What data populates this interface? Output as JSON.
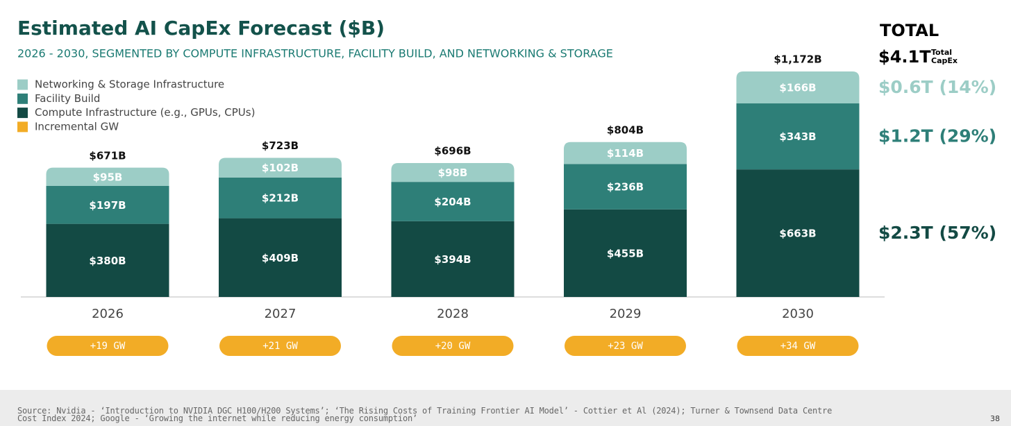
{
  "chart_data": {
    "type": "stacked_bar",
    "title": "Estimated AI CapEx Forecast ($B)",
    "subtitle": "2026 - 2030, SEGMENTED BY COMPUTE INFRASTRUCTURE, FACILITY BUILD, AND NETWORKING & STORAGE",
    "categories": [
      "2026",
      "2027",
      "2028",
      "2029",
      "2030"
    ],
    "series": [
      {
        "name": "Compute Infrastructure (e.g., GPUs, CPUs)",
        "color": "#134a44",
        "values": [
          380,
          409,
          394,
          455,
          663
        ],
        "value_labels": [
          "$380B",
          "$409B",
          "$394B",
          "$455B",
          "$663B"
        ],
        "total_label": "$2.3T (57%)"
      },
      {
        "name": "Facility Build",
        "color": "#2e7f78",
        "values": [
          197,
          212,
          204,
          236,
          343
        ],
        "value_labels": [
          "$197B",
          "$212B",
          "$204B",
          "$236B",
          "$343B"
        ],
        "total_label": "$1.2T (29%)"
      },
      {
        "name": "Networking & Storage Infrastructure",
        "color": "#9ccdc6",
        "values": [
          95,
          102,
          98,
          114,
          166
        ],
        "value_labels": [
          "$95B",
          "$102B",
          "$98B",
          "$114B",
          "$166B"
        ],
        "total_label": "$0.6T (14%)"
      }
    ],
    "totals": {
      "values": [
        671,
        723,
        696,
        804,
        1172
      ],
      "value_labels": [
        "$671B",
        "$723B",
        "$696B",
        "$804B",
        "$1,172B"
      ]
    },
    "incremental_gw": {
      "name": "Incremental GW",
      "color": "#f2ac26",
      "values": [
        19,
        21,
        20,
        23,
        34
      ],
      "value_labels": [
        "+19 GW",
        "+21 GW",
        "+20 GW",
        "+23 GW",
        "+34 GW"
      ]
    },
    "summary": {
      "title": "TOTAL",
      "total": "$4.1T",
      "total_caption": "Total CapEx"
    },
    "source": "Source: Nvidia - ‘Introduction to NVIDIA DGC H100/H200 Systems’; ‘The Rising Costs of Training Frontier AI Model’ - Cottier et Al (2024); Turner & Townsend Data Centre Cost Index 2024; Google - ‘Growing the internet while reducing energy consumption’",
    "page_number": "38"
  }
}
